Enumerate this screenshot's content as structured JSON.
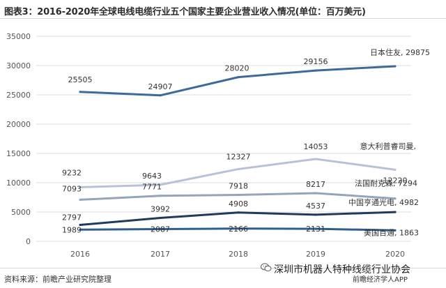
{
  "title": "图表3：2016-2020年全球电线电缆行业五个国家主要企业营业收入情况(单位：百万美元)",
  "source": "资料来源：前瞻产业研究院整理",
  "watermark": {
    "wechat_text": "深圳市机器人特种线缆行业协会",
    "sub_text": "前瞻经济学人APP",
    "icon": "wechat-icon"
  },
  "colors": {
    "japan": "#3d6a9a",
    "italy": "#b9c1d9",
    "france": "#93a4bd",
    "china": "#1f3a5c",
    "usa": "#2f5d8f",
    "grid": "#dcdcdc",
    "axis_text": "#555555",
    "label_text": "#333333"
  },
  "chart_data": {
    "type": "line",
    "title": "图表3：2016-2020年全球电线电缆行业五个国家主要企业营业收入情况(单位：百万美元)",
    "xlabel": "",
    "ylabel": "",
    "categories": [
      "2016",
      "2017",
      "2018",
      "2019",
      "2020"
    ],
    "ylim": [
      0,
      35000
    ],
    "yticks": [
      "0",
      "5000",
      "10000",
      "15000",
      "20000",
      "25000",
      "30000",
      "35000"
    ],
    "grid": "horizontal",
    "series": [
      {
        "key": "japan",
        "name": "日本住友",
        "end_label": "日本住友, 29875",
        "values": [
          25505,
          24907,
          28020,
          29156,
          29875
        ],
        "value_labels": [
          "25505",
          "24907",
          "28020",
          "29156"
        ]
      },
      {
        "key": "italy",
        "name": "意大利普睿司曼",
        "end_label": "意大利普睿司曼,",
        "values": [
          9232,
          9643,
          12327,
          14053,
          12220
        ],
        "value_labels": [
          "9232",
          "9643",
          "12327",
          "14053",
          "12220"
        ]
      },
      {
        "key": "france",
        "name": "法国耐克森",
        "end_label": "法国耐克森, 7294",
        "values": [
          7093,
          7771,
          7918,
          8217,
          7294
        ],
        "value_labels": [
          "7093",
          "7771",
          "7918",
          "8217"
        ]
      },
      {
        "key": "china",
        "name": "中国亨通光电",
        "end_label": "中国亨通光电, 4982",
        "values": [
          2797,
          3992,
          4908,
          4537,
          4982
        ],
        "value_labels": [
          "2797",
          "3992",
          "4908",
          "4537"
        ]
      },
      {
        "key": "usa",
        "name": "美国百通",
        "end_label": "美国百通, 1863",
        "values": [
          1989,
          2087,
          2166,
          2131,
          1863
        ],
        "value_labels": [
          "1989",
          "2087",
          "2166",
          "2131"
        ]
      }
    ]
  }
}
